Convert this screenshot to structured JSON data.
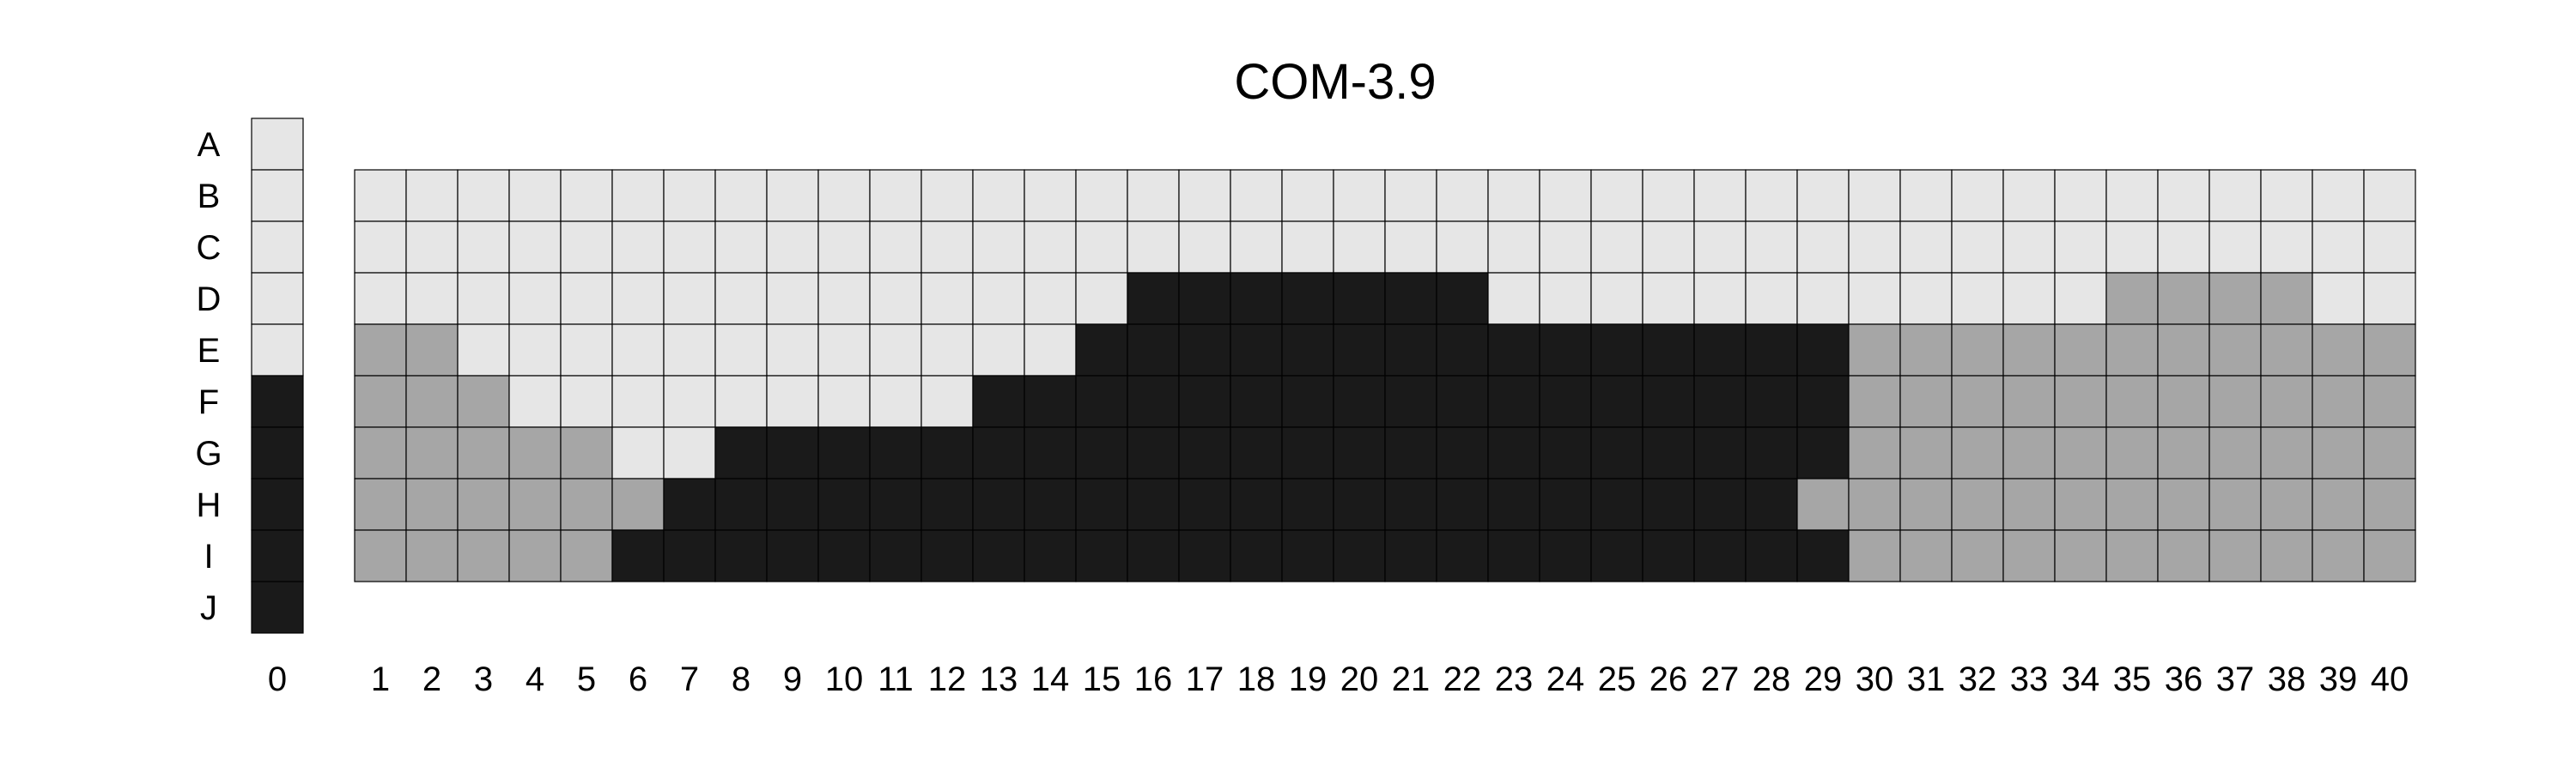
{
  "chart_data": {
    "type": "heatmap",
    "title": "COM-3.9",
    "row_labels": [
      "A",
      "B",
      "C",
      "D",
      "E",
      "F",
      "G",
      "H",
      "I",
      "J"
    ],
    "column_labels": [
      "0",
      "1",
      "2",
      "3",
      "4",
      "5",
      "6",
      "7",
      "8",
      "9",
      "10",
      "11",
      "12",
      "13",
      "14",
      "15",
      "16",
      "17",
      "18",
      "19",
      "20",
      "21",
      "22",
      "23",
      "24",
      "25",
      "26",
      "27",
      "28",
      "29",
      "30",
      "31",
      "32",
      "33",
      "34",
      "35",
      "36",
      "37",
      "38",
      "39",
      "40"
    ],
    "color_key": {
      "L": "#e6e6e6",
      "M": "#a6a6a6",
      "D": "#1a1a1a"
    },
    "reference_column": {
      "label": "0",
      "cells": {
        "A": "L",
        "B": "L",
        "C": "L",
        "D": "L",
        "E": "L",
        "F": "D",
        "G": "D",
        "H": "D",
        "I": "D",
        "J": "D"
      }
    },
    "grid": {
      "rows": [
        "B",
        "C",
        "D",
        "E",
        "F",
        "G",
        "H",
        "I"
      ],
      "columns": [
        "1",
        "2",
        "3",
        "4",
        "5",
        "6",
        "7",
        "8",
        "9",
        "10",
        "11",
        "12",
        "13",
        "14",
        "15",
        "16",
        "17",
        "18",
        "19",
        "20",
        "21",
        "22",
        "23",
        "24",
        "25",
        "26",
        "27",
        "28",
        "29",
        "30",
        "31",
        "32",
        "33",
        "34",
        "35",
        "36",
        "37",
        "38",
        "39",
        "40"
      ],
      "cells": [
        [
          "L",
          "L",
          "L",
          "L",
          "L",
          "L",
          "L",
          "L",
          "L",
          "L",
          "L",
          "L",
          "L",
          "L",
          "L",
          "L",
          "L",
          "L",
          "L",
          "L",
          "L",
          "L",
          "L",
          "L",
          "L",
          "L",
          "L",
          "L",
          "L",
          "L",
          "L",
          "L",
          "L",
          "L",
          "L",
          "L",
          "L",
          "L",
          "L",
          "L"
        ],
        [
          "L",
          "L",
          "L",
          "L",
          "L",
          "L",
          "L",
          "L",
          "L",
          "L",
          "L",
          "L",
          "L",
          "L",
          "L",
          "L",
          "L",
          "L",
          "L",
          "L",
          "L",
          "L",
          "L",
          "L",
          "L",
          "L",
          "L",
          "L",
          "L",
          "L",
          "L",
          "L",
          "L",
          "L",
          "L",
          "L",
          "L",
          "L",
          "L",
          "L"
        ],
        [
          "L",
          "L",
          "L",
          "L",
          "L",
          "L",
          "L",
          "L",
          "L",
          "L",
          "L",
          "L",
          "L",
          "L",
          "L",
          "D",
          "D",
          "D",
          "D",
          "D",
          "D",
          "D",
          "L",
          "L",
          "L",
          "L",
          "L",
          "L",
          "L",
          "L",
          "L",
          "L",
          "L",
          "L",
          "M",
          "M",
          "M",
          "M",
          "L",
          "L"
        ],
        [
          "M",
          "M",
          "L",
          "L",
          "L",
          "L",
          "L",
          "L",
          "L",
          "L",
          "L",
          "L",
          "L",
          "L",
          "D",
          "D",
          "D",
          "D",
          "D",
          "D",
          "D",
          "D",
          "D",
          "D",
          "D",
          "D",
          "D",
          "D",
          "D",
          "M",
          "M",
          "M",
          "M",
          "M",
          "M",
          "M",
          "M",
          "M",
          "M",
          "M"
        ],
        [
          "M",
          "M",
          "M",
          "L",
          "L",
          "L",
          "L",
          "L",
          "L",
          "L",
          "L",
          "L",
          "D",
          "D",
          "D",
          "D",
          "D",
          "D",
          "D",
          "D",
          "D",
          "D",
          "D",
          "D",
          "D",
          "D",
          "D",
          "D",
          "D",
          "M",
          "M",
          "M",
          "M",
          "M",
          "M",
          "M",
          "M",
          "M",
          "M",
          "M"
        ],
        [
          "M",
          "M",
          "M",
          "M",
          "M",
          "L",
          "L",
          "D",
          "D",
          "D",
          "D",
          "D",
          "D",
          "D",
          "D",
          "D",
          "D",
          "D",
          "D",
          "D",
          "D",
          "D",
          "D",
          "D",
          "D",
          "D",
          "D",
          "D",
          "D",
          "M",
          "M",
          "M",
          "M",
          "M",
          "M",
          "M",
          "M",
          "M",
          "M",
          "M"
        ],
        [
          "M",
          "M",
          "M",
          "M",
          "M",
          "M",
          "D",
          "D",
          "D",
          "D",
          "D",
          "D",
          "D",
          "D",
          "D",
          "D",
          "D",
          "D",
          "D",
          "D",
          "D",
          "D",
          "D",
          "D",
          "D",
          "D",
          "D",
          "D",
          "M",
          "M",
          "M",
          "M",
          "M",
          "M",
          "M",
          "M",
          "M",
          "M",
          "M",
          "M"
        ],
        [
          "M",
          "M",
          "M",
          "M",
          "M",
          "D",
          "D",
          "D",
          "D",
          "D",
          "D",
          "D",
          "D",
          "D",
          "D",
          "D",
          "D",
          "D",
          "D",
          "D",
          "D",
          "D",
          "D",
          "D",
          "D",
          "D",
          "D",
          "D",
          "D",
          "M",
          "M",
          "M",
          "M",
          "M",
          "M",
          "M",
          "M",
          "M",
          "M",
          "M"
        ]
      ]
    }
  }
}
